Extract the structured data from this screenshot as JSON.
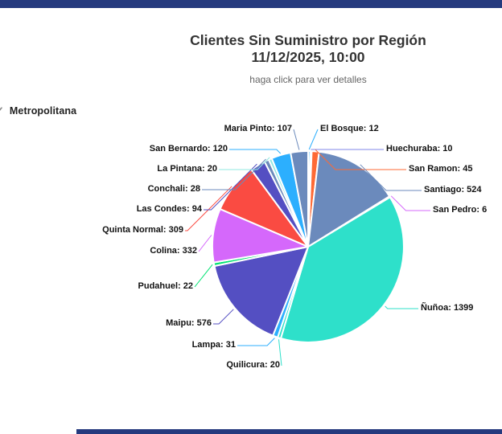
{
  "page": {
    "colors": {
      "top_bar": "#253a7e",
      "bottom_bar": "#253a7e"
    },
    "region": {
      "label": "Metropolitana",
      "icon": "check-icon",
      "check_glyph": "✓"
    }
  },
  "chart_data": {
    "type": "pie",
    "title": "Clientes Sin Suministro por Región",
    "datetime": "11/12/2025, 10:00",
    "subtitle": "haga click para ver detalles",
    "label_format": "{name}: {value}",
    "legend": "none",
    "slices": [
      {
        "name": "El Bosque",
        "value": 12,
        "color": "#2caffe",
        "side": "right"
      },
      {
        "name": "Huechuraba",
        "value": 10,
        "color": "#8087e8",
        "side": "right"
      },
      {
        "name": "San Ramon",
        "value": 45,
        "color": "#fe6a35",
        "side": "right"
      },
      {
        "name": "Santiago",
        "value": 524,
        "color": "#6b8abc",
        "side": "right"
      },
      {
        "name": "San Pedro",
        "value": 6,
        "color": "#d568fb",
        "side": "right"
      },
      {
        "name": "Ñuñoa",
        "value": 1399,
        "color": "#2ee0ca",
        "side": "right"
      },
      {
        "name": "Quilicura",
        "value": 20,
        "color": "#2ee0ca",
        "side": "left"
      },
      {
        "name": "Lampa",
        "value": 31,
        "color": "#2caffe",
        "side": "left"
      },
      {
        "name": "Maipu",
        "value": 576,
        "color": "#544fc2",
        "side": "left"
      },
      {
        "name": "Pudahuel",
        "value": 22,
        "color": "#00e272",
        "side": "left"
      },
      {
        "name": "Colina",
        "value": 332,
        "color": "#d568fb",
        "side": "left"
      },
      {
        "name": "Quinta Normal",
        "value": 309,
        "color": "#fa4b42",
        "side": "left"
      },
      {
        "name": "Las Condes",
        "value": 94,
        "color": "#544fc2",
        "side": "left"
      },
      {
        "name": "Conchali",
        "value": 28,
        "color": "#6b8abc",
        "side": "left"
      },
      {
        "name": "La Pintana",
        "value": 20,
        "color": "#91e8e1",
        "side": "left"
      },
      {
        "name": "San Bernardo",
        "value": 120,
        "color": "#2caffe",
        "side": "left"
      },
      {
        "name": "Maria Pinto",
        "value": 107,
        "color": "#6b8abc",
        "side": "left"
      }
    ]
  }
}
